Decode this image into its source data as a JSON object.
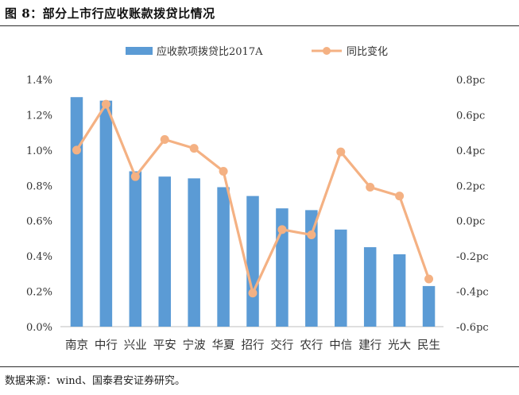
{
  "figure_title": "图 8：部分上市行应收账款拨贷比情况",
  "source": "数据来源：wind、国泰君安证券研究。",
  "chart_data": {
    "type": "bar+line",
    "categories": [
      "南京",
      "中行",
      "兴业",
      "平安",
      "宁波",
      "华夏",
      "招行",
      "交行",
      "农行",
      "中信",
      "建行",
      "光大",
      "民生"
    ],
    "series": [
      {
        "name": "应收款项拨贷比2017A",
        "type": "bar",
        "axis": "left",
        "color": "#5b9bd5",
        "values": [
          1.3,
          1.28,
          0.88,
          0.85,
          0.84,
          0.79,
          0.74,
          0.67,
          0.66,
          0.55,
          0.45,
          0.41,
          0.23
        ]
      },
      {
        "name": "同比变化",
        "type": "line",
        "axis": "right",
        "color": "#f4b183",
        "values": [
          0.4,
          0.66,
          0.25,
          0.46,
          0.41,
          0.28,
          -0.41,
          -0.05,
          -0.08,
          0.39,
          0.19,
          0.14,
          -0.33
        ]
      }
    ],
    "left_axis": {
      "min": 0.0,
      "max": 1.4,
      "step": 0.2,
      "tick_labels": [
        "0.0%",
        "0.2%",
        "0.4%",
        "0.6%",
        "0.8%",
        "1.0%",
        "1.2%",
        "1.4%"
      ]
    },
    "right_axis": {
      "min": -0.6,
      "max": 0.8,
      "step": 0.2,
      "tick_labels": [
        "-0.6pc",
        "-0.4pc",
        "-0.2pc",
        "0.0pc",
        "0.2pc",
        "0.4pc",
        "0.6pc",
        "0.8pc"
      ]
    },
    "legend_position": "top-center"
  }
}
